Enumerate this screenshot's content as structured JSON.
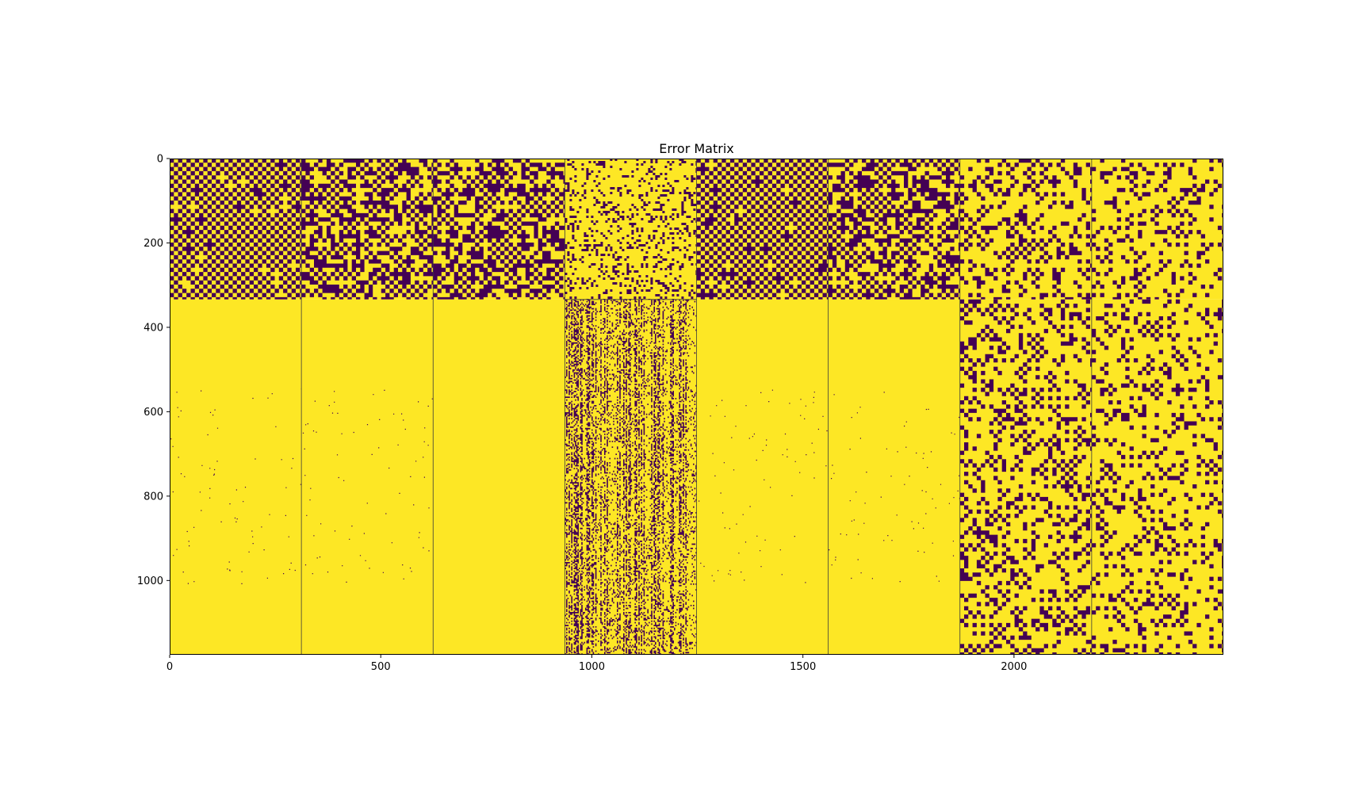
{
  "chart_data": {
    "type": "heatmap",
    "title": "Error Matrix",
    "xlabel": "",
    "ylabel": "",
    "xlim": [
      0,
      2496
    ],
    "ylim": [
      1176,
      0
    ],
    "x_ticks": [
      0,
      500,
      1000,
      1500,
      2000
    ],
    "y_ticks": [
      0,
      200,
      400,
      600,
      800,
      1000
    ],
    "colormap": "viridis",
    "value_range": [
      0,
      1
    ],
    "colors": {
      "low": "#440154",
      "high": "#fde725",
      "frame": "#000000",
      "divider": "#3b3b3b"
    },
    "grid": false,
    "block_columns": [
      0,
      312,
      624,
      936,
      1248,
      1560,
      1872,
      2184,
      2496
    ],
    "upper_band_rows": [
      0,
      334
    ],
    "lower_band_rows": [
      334,
      1176
    ],
    "blocks": [
      {
        "col_range": [
          0,
          312
        ],
        "upper_pattern": "checkerboard",
        "upper_error_density": 0.5,
        "lower_pattern": "sparse",
        "lower_error_density": 0.004
      },
      {
        "col_range": [
          312,
          624
        ],
        "upper_pattern": "noisy-checkerboard",
        "upper_error_density": 0.4,
        "lower_pattern": "sparse",
        "lower_error_density": 0.004
      },
      {
        "col_range": [
          624,
          936
        ],
        "upper_pattern": "noisy-checkerboard",
        "upper_error_density": 0.32,
        "lower_pattern": "uniform",
        "lower_error_density": 0.0
      },
      {
        "col_range": [
          936,
          1248
        ],
        "upper_pattern": "scattered",
        "upper_error_density": 0.2,
        "lower_pattern": "vertical-stripes",
        "lower_error_density": 0.35
      },
      {
        "col_range": [
          1248,
          1560
        ],
        "upper_pattern": "checkerboard",
        "upper_error_density": 0.5,
        "lower_pattern": "sparse",
        "lower_error_density": 0.004
      },
      {
        "col_range": [
          1560,
          1872
        ],
        "upper_pattern": "noisy-checkerboard",
        "upper_error_density": 0.4,
        "lower_pattern": "sparse",
        "lower_error_density": 0.004
      },
      {
        "col_range": [
          1872,
          2184
        ],
        "upper_pattern": "scattered-checker",
        "upper_error_density": 0.28,
        "lower_pattern": "scattered-checker",
        "lower_error_density": 0.28
      },
      {
        "col_range": [
          2184,
          2496
        ],
        "upper_pattern": "scattered-checker",
        "upper_error_density": 0.2,
        "lower_pattern": "scattered-checker",
        "lower_error_density": 0.2
      }
    ]
  }
}
